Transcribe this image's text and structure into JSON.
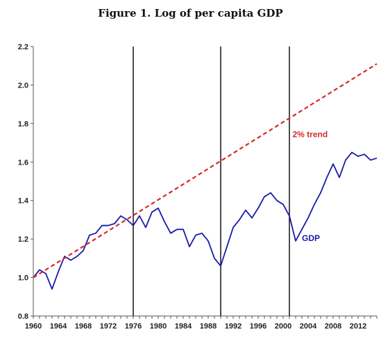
{
  "chart_data": {
    "type": "line",
    "title": "Figure 1. Log of per capita GDP",
    "xlabel": "",
    "ylabel": "",
    "xlim": [
      1960,
      2015
    ],
    "ylim": [
      0.8,
      2.2
    ],
    "grid": false,
    "yticks": [
      "0.8",
      "1.0",
      "1.2",
      "1.4",
      "1.6",
      "1.8",
      "2.0",
      "2.2"
    ],
    "xticks": [
      "1960",
      "1964",
      "1968",
      "1972",
      "1976",
      "1980",
      "1984",
      "1988",
      "1992",
      "1996",
      "2000",
      "2004",
      "2008",
      "2012"
    ],
    "vertical_lines": [
      1976,
      1990,
      2001
    ],
    "series": [
      {
        "name": "GDP",
        "color": "#1a1aa6",
        "style": "solid",
        "x": [
          1960,
          1961,
          1962,
          1963,
          1964,
          1965,
          1966,
          1967,
          1968,
          1969,
          1970,
          1971,
          1972,
          1973,
          1974,
          1975,
          1976,
          1977,
          1978,
          1979,
          1980,
          1981,
          1982,
          1983,
          1984,
          1985,
          1986,
          1987,
          1988,
          1989,
          1990,
          1991,
          1992,
          1993,
          1994,
          1995,
          1996,
          1997,
          1998,
          1999,
          2000,
          2001,
          2002,
          2003,
          2004,
          2005,
          2006,
          2007,
          2008,
          2009,
          2010,
          2011,
          2012,
          2013,
          2014,
          2015
        ],
        "y": [
          1.0,
          1.04,
          1.02,
          0.94,
          1.03,
          1.11,
          1.09,
          1.11,
          1.14,
          1.22,
          1.23,
          1.27,
          1.27,
          1.28,
          1.32,
          1.3,
          1.27,
          1.32,
          1.26,
          1.34,
          1.36,
          1.29,
          1.23,
          1.25,
          1.25,
          1.16,
          1.22,
          1.23,
          1.19,
          1.1,
          1.06,
          1.16,
          1.26,
          1.3,
          1.35,
          1.31,
          1.36,
          1.42,
          1.44,
          1.4,
          1.38,
          1.32,
          1.19,
          1.25,
          1.31,
          1.38,
          1.44,
          1.52,
          1.59,
          1.52,
          1.61,
          1.65,
          1.63,
          1.64,
          1.61,
          1.62
        ]
      },
      {
        "name": "2% trend",
        "color": "#d42a2a",
        "style": "dashed",
        "x": [
          1960,
          2015
        ],
        "y": [
          1.0,
          2.11
        ]
      }
    ],
    "annotations": [
      {
        "text": "2% trend",
        "color": "#d42a2a",
        "x": 2001.5,
        "y": 1.73
      },
      {
        "text": "GDP",
        "color": "#1a1aa6",
        "x": 2003,
        "y": 1.19
      }
    ]
  }
}
